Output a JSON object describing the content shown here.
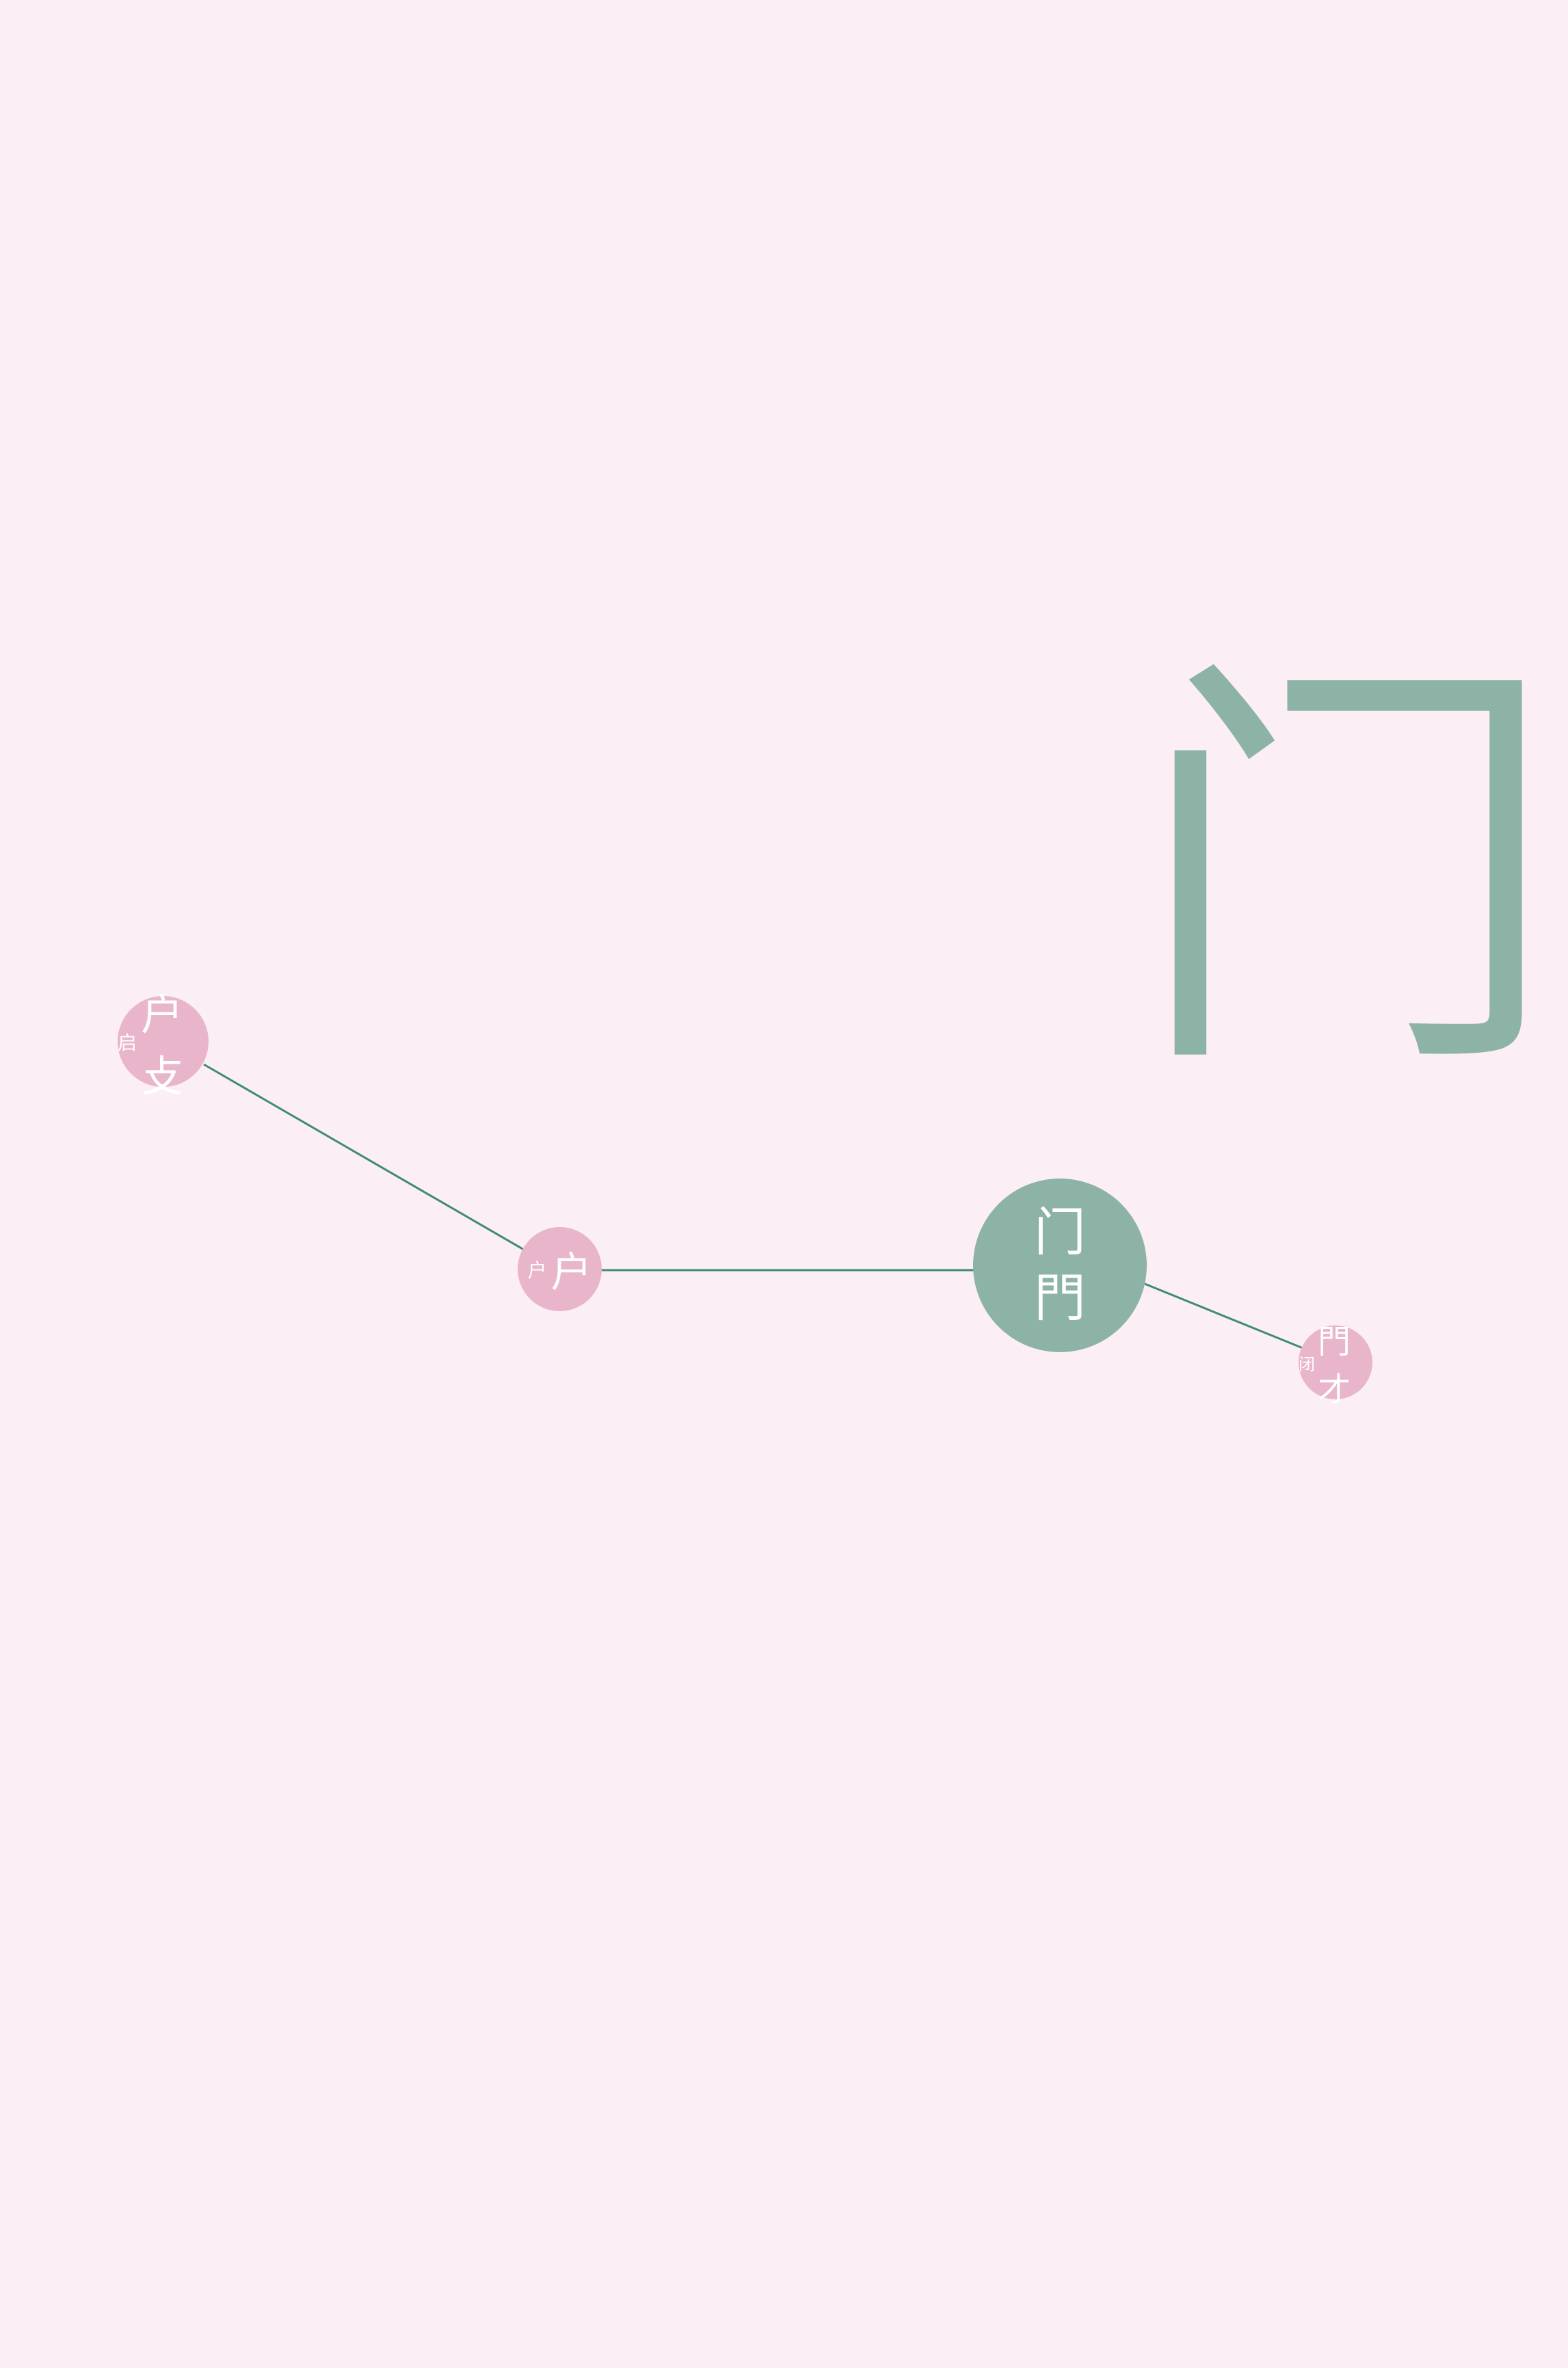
{
  "diagram": {
    "main_character": "门",
    "colors": {
      "background": "#fbeef4",
      "accent_green": "#8db3a7",
      "accent_pink": "#e9b5cb",
      "connector": "#3f8a78",
      "node_text": "#ffffff"
    },
    "nodes": {
      "qi": {
        "modern": "启",
        "ancient": "户攴"
      },
      "hu": {
        "modern": "户",
        "ancient": "户"
      },
      "men": {
        "modern": "门",
        "ancient": "門"
      },
      "bi": {
        "modern": "闭",
        "ancient": "門才"
      }
    },
    "connections": [
      [
        "qi",
        "hu"
      ],
      [
        "hu",
        "men"
      ],
      [
        "men",
        "bi"
      ]
    ]
  }
}
